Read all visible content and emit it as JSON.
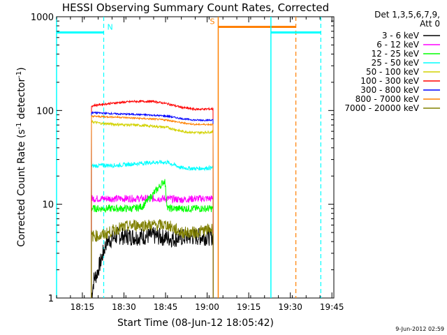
{
  "chart_data": {
    "type": "line",
    "title": "HESSI Observing Summary Count Rates, Corrected",
    "xlabel": "Start Time (08-Jun-12 18:05:42)",
    "ylabel_main": "Corrected Count Rate (s",
    "ylabel_sup1": "-1",
    "ylabel_mid": " detector",
    "ylabel_sup2": "-1",
    "ylabel_end": ")",
    "y_scale": "log",
    "ylim": [
      1,
      1000
    ],
    "xlim_minutes": [
      0,
      100
    ],
    "x_ticks": [
      {
        "minute": 9.3,
        "label": "18:15"
      },
      {
        "minute": 24.3,
        "label": "18:30"
      },
      {
        "minute": 39.3,
        "label": "18:45"
      },
      {
        "minute": 54.3,
        "label": "19:00"
      },
      {
        "minute": 69.3,
        "label": "19:15"
      },
      {
        "minute": 84.3,
        "label": "19:30"
      },
      {
        "minute": 99.3,
        "label": "19:45"
      }
    ],
    "y_ticks": [
      {
        "value": 1,
        "label": "1"
      },
      {
        "value": 10,
        "label": "10"
      },
      {
        "value": 100,
        "label": "100"
      },
      {
        "value": 1000,
        "label": "1000"
      }
    ],
    "legend_header": [
      "Det 1,3,5,6,7,9,",
      "Att 0"
    ],
    "legend_position": "right",
    "timestamp": "9-Jun-2012 02:59",
    "series": [
      {
        "name": "3 - 6 keV",
        "color": "#000000",
        "x": [
          12.5,
          13.5,
          14.5,
          16,
          18,
          22,
          28,
          35,
          42,
          48,
          54,
          56.5
        ],
        "y": [
          1,
          1.6,
          1.8,
          2.5,
          4,
          4.6,
          4.5,
          4.6,
          4.3,
          4.5,
          4.5,
          4.5
        ]
      },
      {
        "name": "6 - 12 keV",
        "color": "#ff00ff",
        "x": [
          12.5,
          16,
          22,
          28,
          35,
          40,
          45,
          50,
          56.5
        ],
        "y": [
          11.5,
          11.5,
          11.5,
          11.5,
          11.5,
          11.5,
          11.2,
          11.5,
          11.5
        ]
      },
      {
        "name": "12 - 25 keV",
        "color": "#00ff00",
        "x": [
          12.5,
          16,
          22,
          28,
          31,
          35,
          39,
          40,
          45,
          50,
          56.5
        ],
        "y": [
          9,
          9,
          9,
          9,
          9.5,
          13,
          18,
          9,
          9,
          9,
          9
        ]
      },
      {
        "name": "25 - 50 keV",
        "color": "#00ffff",
        "x": [
          12.5,
          16,
          22,
          28,
          35,
          40,
          45,
          50,
          56.5
        ],
        "y": [
          25.5,
          26,
          26,
          27,
          28,
          28,
          24.5,
          24,
          24.5
        ]
      },
      {
        "name": "50 - 100 keV",
        "color": "#d2d200",
        "x": [
          12.5,
          16,
          22,
          28,
          35,
          40,
          45,
          50,
          56.5
        ],
        "y": [
          76,
          73,
          71,
          70,
          68,
          66,
          60,
          58,
          59
        ]
      },
      {
        "name": "100 - 300 keV",
        "color": "#ff0000",
        "x": [
          12.5,
          16,
          22,
          28,
          35,
          40,
          45,
          50,
          56.5
        ],
        "y": [
          112,
          116,
          121,
          125,
          125,
          118,
          108,
          103,
          104
        ]
      },
      {
        "name": "300 - 800 keV",
        "color": "#0000ff",
        "x": [
          12.5,
          16,
          22,
          28,
          35,
          40,
          45,
          50,
          56.5
        ],
        "y": [
          95,
          94,
          92,
          91,
          89,
          87,
          82,
          79,
          79
        ]
      },
      {
        "name": "800 - 7000 keV",
        "color": "#ff8000",
        "x": [
          12.5,
          16,
          22,
          28,
          35,
          40,
          45,
          50,
          56.5
        ],
        "y": [
          87,
          86,
          85,
          83,
          81,
          79,
          74,
          71,
          71
        ]
      },
      {
        "name": "7000 - 20000 keV",
        "color": "#808000",
        "x": [
          12.5,
          16,
          22,
          28,
          35,
          40,
          45,
          50,
          56.5
        ],
        "y": [
          4.6,
          4.6,
          5.5,
          6,
          6,
          6,
          5,
          5,
          5.5
        ]
      }
    ],
    "annotations": [
      {
        "label": "N",
        "color": "#00ffff",
        "bar_start": 0,
        "bar_end": 17,
        "bar_value": 680,
        "start_line": 0,
        "dashed_line": 17
      },
      {
        "label": "S",
        "color": "#ff8000",
        "bar_start": 58.3,
        "bar_end": 86.3,
        "bar_value": 780,
        "start_line": 58.3,
        "dashed_line": 86.3
      },
      {
        "label": "",
        "color": "#00ffff",
        "bar_start": 77.3,
        "bar_end": 95.3,
        "bar_value": 680,
        "start_line": 77.3,
        "dashed_line": 95.3
      }
    ]
  }
}
